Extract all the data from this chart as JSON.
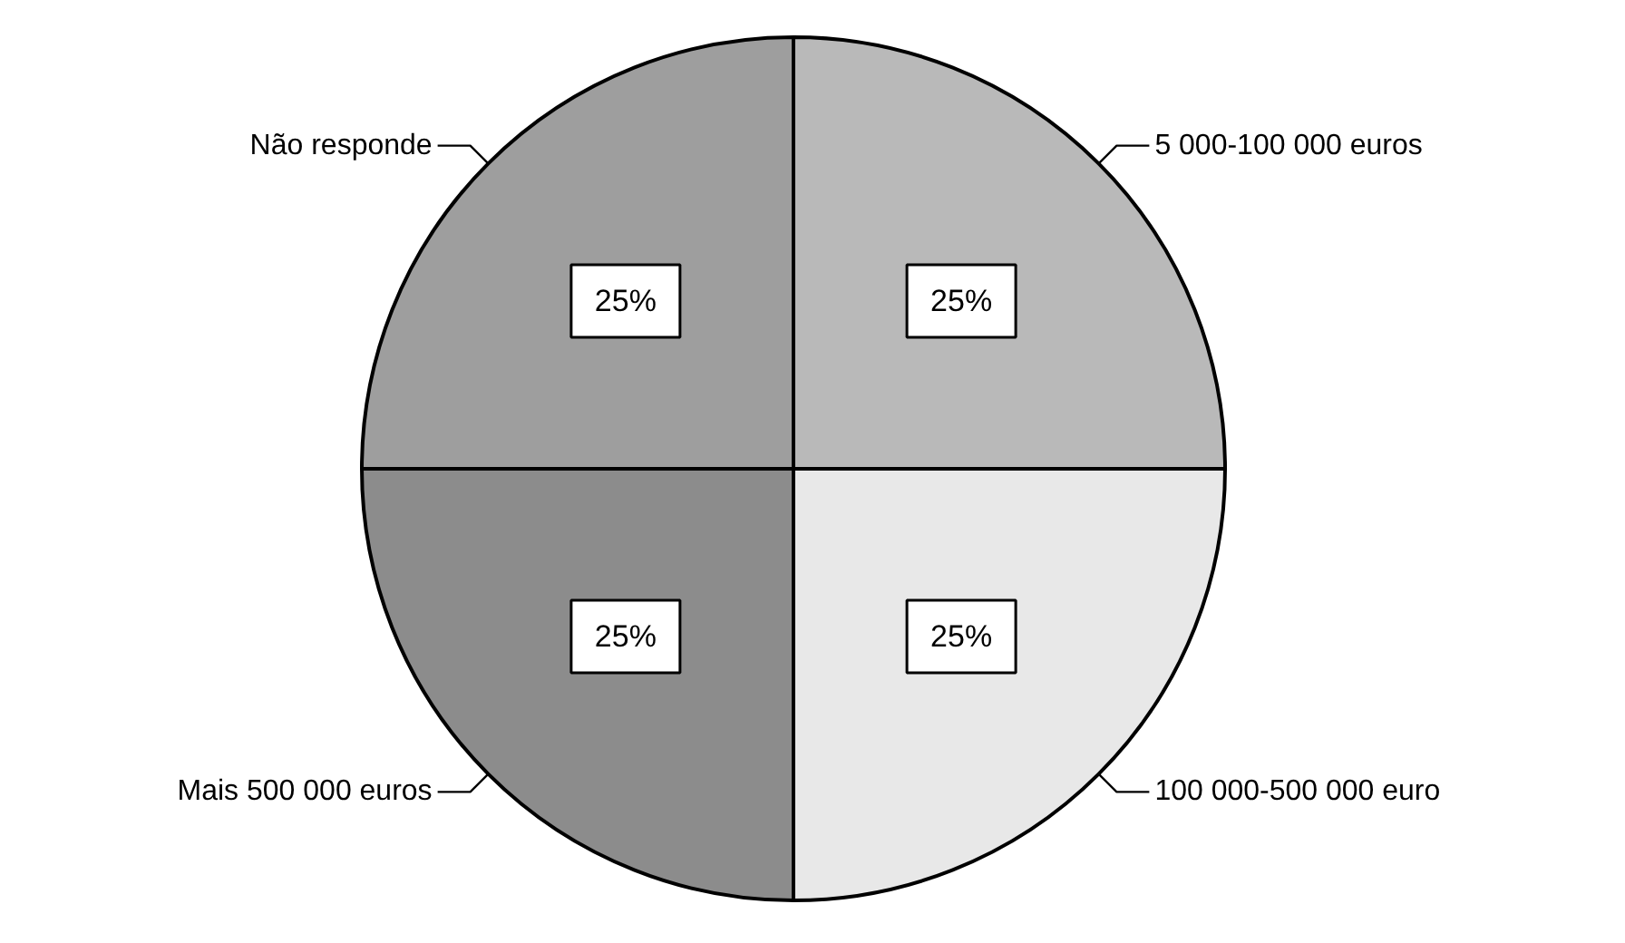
{
  "chart_data": {
    "type": "pie",
    "categories": [
      "5 000-100 000 euros",
      "100 000-500 000 euro",
      "Mais 500 000 euros",
      "Não responde"
    ],
    "values": [
      25,
      25,
      25,
      25
    ],
    "colors": [
      "#b9b9b9",
      "#e8e8e8",
      "#8c8c8c",
      "#9e9e9e"
    ],
    "value_labels": [
      "25%",
      "25%",
      "25%",
      "25%"
    ]
  }
}
